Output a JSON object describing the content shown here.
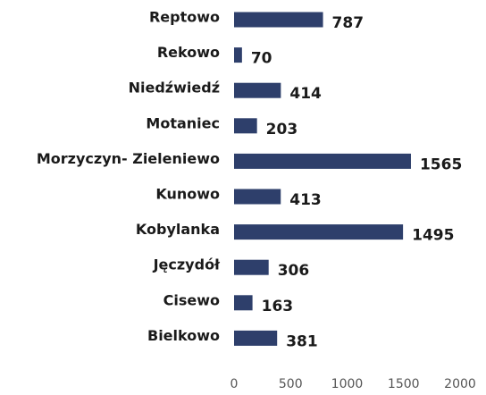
{
  "chart_data": {
    "type": "barh",
    "categories": [
      "Reptowo",
      "Rekowo",
      "Niedźwiedź",
      "Motaniec",
      "Morzyczyn- Zieleniewo",
      "Kunowo",
      "Kobylanka",
      "Jęczydół",
      "Cisewo",
      "Bielkowo"
    ],
    "values": [
      787,
      70,
      414,
      203,
      1565,
      413,
      1495,
      306,
      163,
      381
    ],
    "color": "#2e3f6b",
    "xlim": [
      0,
      2000
    ],
    "xticks": [
      0,
      500,
      1000,
      1500,
      2000
    ],
    "grid": false
  }
}
